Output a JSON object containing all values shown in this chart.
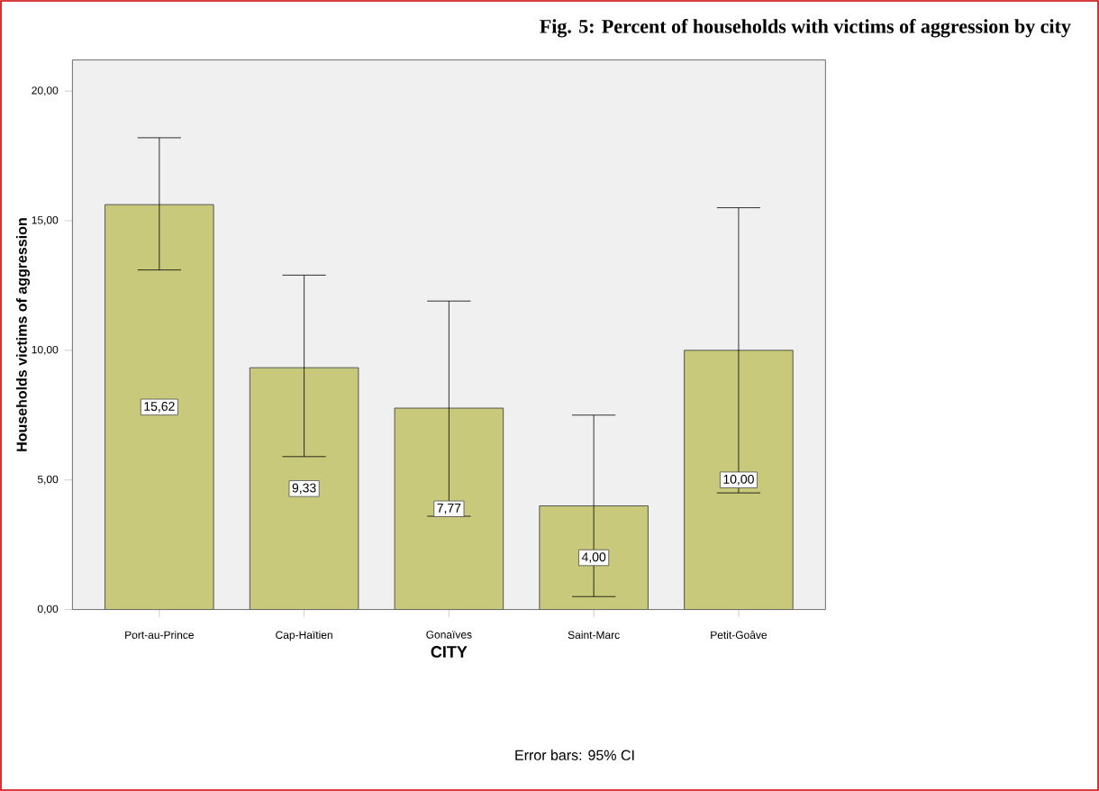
{
  "chart_data": {
    "type": "bar",
    "title": "Fig. 5: Percent of households with victims of aggression by city",
    "xlabel": "CITY",
    "ylabel": "Households victims of aggression",
    "annotations": [
      "Error bars: 95% CI"
    ],
    "categories": [
      "Port-au-Prince",
      "Cap-Haïtien",
      "Gonaïves",
      "Saint-Marc",
      "Petit-Goâve"
    ],
    "values": [
      15.62,
      9.33,
      7.77,
      4.0,
      10.0
    ],
    "value_labels": [
      "15,62",
      "9,33",
      "7,77",
      "4,00",
      "10,00"
    ],
    "errors": [
      [
        13.1,
        18.2
      ],
      [
        5.9,
        12.9
      ],
      [
        3.6,
        11.9
      ],
      [
        0.5,
        7.5
      ],
      [
        4.5,
        15.5
      ]
    ],
    "color": "#c9c97c",
    "ylim": [
      0,
      21.2
    ],
    "yticks": [
      {
        "value": 0,
        "label": "0,00"
      },
      {
        "value": 5,
        "label": "5,00"
      },
      {
        "value": 10,
        "label": "10,00"
      },
      {
        "value": 15,
        "label": "15,00"
      },
      {
        "value": 20,
        "label": "20,00"
      }
    ],
    "grid": false
  }
}
